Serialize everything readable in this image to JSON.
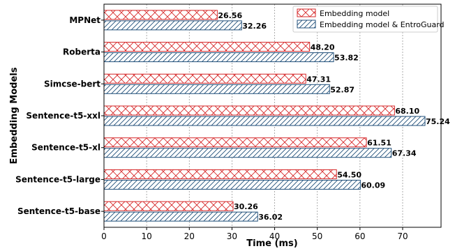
{
  "chart_data": {
    "type": "bar",
    "orientation": "horizontal",
    "title": "",
    "xlabel": "Time (ms)",
    "ylabel": "Embedding Models",
    "xlim": [
      0,
      79
    ],
    "xticks": [
      0,
      10,
      20,
      30,
      40,
      50,
      60,
      70
    ],
    "grid": "vertical-dotted",
    "legend_position": "top-right",
    "categories": [
      "MPNet",
      "Roberta",
      "Simcse-bert",
      "Sentence-t5-xxl",
      "Sentence-t5-xl",
      "Sentence-t5-large",
      "Sentence-t5-base"
    ],
    "series": [
      {
        "name": "Embedding model",
        "color": "#d62728",
        "hatch": "cross",
        "values": [
          26.56,
          48.2,
          47.31,
          68.1,
          61.51,
          54.5,
          30.26
        ],
        "labels": [
          "26.56",
          "48.20",
          "47.31",
          "68.10",
          "61.51",
          "54.50",
          "30.26"
        ]
      },
      {
        "name": "Embedding model & EntroGuard",
        "color": "#1f4e79",
        "hatch": "diagonal",
        "values": [
          32.26,
          53.82,
          52.87,
          75.24,
          67.34,
          60.09,
          36.02
        ],
        "labels": [
          "32.26",
          "53.82",
          "52.87",
          "75.24",
          "67.34",
          "60.09",
          "36.02"
        ]
      }
    ]
  }
}
